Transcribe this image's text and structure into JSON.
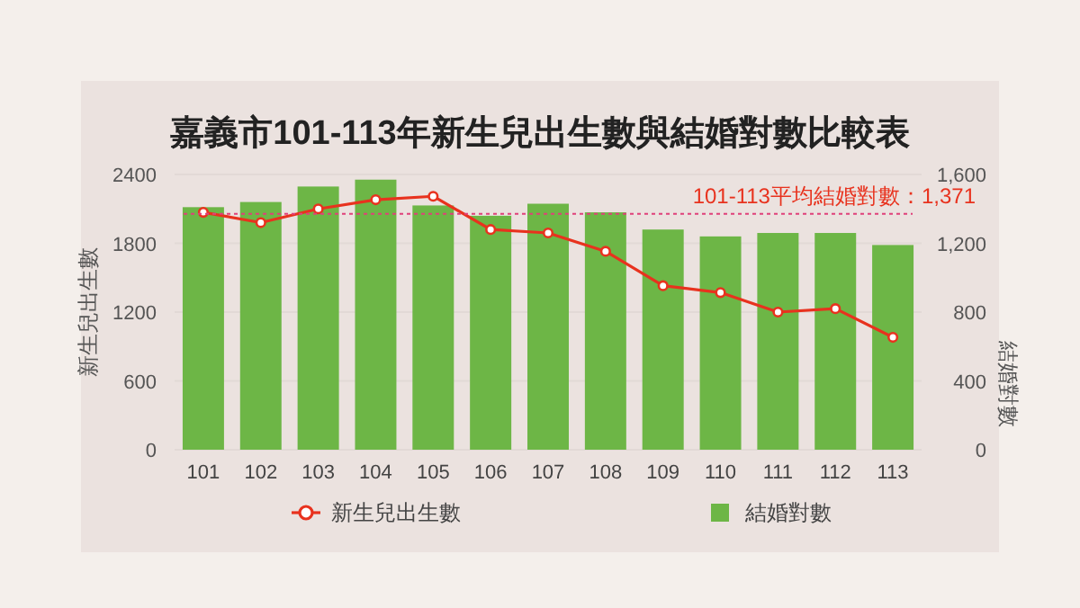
{
  "chart_data": {
    "type": "bar",
    "title": "嘉義市101-113年新生兒出生數與結婚對數比較表",
    "ylabel": "新生兒出生數",
    "y2label": "結婚對數",
    "categories": [
      "101",
      "102",
      "103",
      "104",
      "105",
      "106",
      "107",
      "108",
      "109",
      "110",
      "111",
      "112",
      "113"
    ],
    "series": [
      {
        "name": "新生兒出生數",
        "type": "line",
        "color": "#e8321e",
        "marker": "circle",
        "values": [
          2070,
          1980,
          2100,
          2180,
          2210,
          1920,
          1890,
          1730,
          1430,
          1370,
          1200,
          1230,
          980
        ]
      },
      {
        "name": "結婚對數",
        "axis": "y2",
        "color": "#6db646",
        "values": [
          1410,
          1440,
          1530,
          1570,
          1420,
          1360,
          1430,
          1380,
          1280,
          1240,
          1260,
          1260,
          1190
        ]
      }
    ],
    "ylim": [
      0,
      2400
    ],
    "yticks": [
      0,
      600,
      1200,
      1800,
      2400
    ],
    "y2lim": [
      0,
      1600
    ],
    "y2ticks": [
      0,
      {
        "value": 400,
        "label": "400"
      },
      {
        "value": 800,
        "label": "800"
      },
      {
        "value": 1200,
        "label": "1,200"
      },
      {
        "value": 1600,
        "label": "1,600"
      }
    ],
    "ref_lines": [
      {
        "axis": "y2",
        "value": 1371,
        "label": "101-113平均結婚對數：1,371",
        "color": "#e0407a",
        "line_style": "dotted"
      }
    ],
    "grid": "y",
    "legend": "bottom"
  }
}
